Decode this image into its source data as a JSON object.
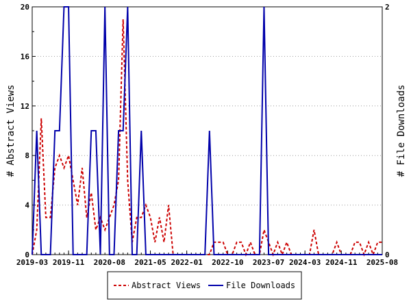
{
  "chart_data": {
    "type": "line",
    "title": "",
    "ylabel_left": "# Abstract Views",
    "ylabel_right": "# File Downloads",
    "ylim_left": [
      0,
      20
    ],
    "ylim_right": [
      0,
      2
    ],
    "yticks_left": [
      "0",
      "4",
      "8",
      "12",
      "16",
      "20"
    ],
    "yticks_right": [
      "0",
      "2"
    ],
    "x_start": "2019-03",
    "x_end": "2025-08",
    "xticks": [
      "2019-03",
      "2019-11",
      "2020-08",
      "2021-05",
      "2022-01",
      "2022-10",
      "2023-07",
      "2024-03",
      "2024-11",
      "2025-08"
    ],
    "legend_position": "bottom",
    "series": [
      {
        "name": "Abstract Views",
        "axis": "left",
        "color": "#cc0000",
        "style": "dashed",
        "points": [
          [
            "2019-03",
            0
          ],
          [
            "2019-04",
            2
          ],
          [
            "2019-05",
            11
          ],
          [
            "2019-06",
            3
          ],
          [
            "2019-07",
            3
          ],
          [
            "2019-08",
            7
          ],
          [
            "2019-09",
            8
          ],
          [
            "2019-10",
            7
          ],
          [
            "2019-11",
            8
          ],
          [
            "2019-12",
            6
          ],
          [
            "2020-01",
            4
          ],
          [
            "2020-02",
            7
          ],
          [
            "2020-03",
            3
          ],
          [
            "2020-04",
            5
          ],
          [
            "2020-05",
            2
          ],
          [
            "2020-06",
            3
          ],
          [
            "2020-07",
            2
          ],
          [
            "2020-08",
            3
          ],
          [
            "2020-09",
            4
          ],
          [
            "2020-10",
            6
          ],
          [
            "2020-11",
            19
          ],
          [
            "2020-12",
            6
          ],
          [
            "2021-01",
            1
          ],
          [
            "2021-02",
            3
          ],
          [
            "2021-03",
            3
          ],
          [
            "2021-04",
            4
          ],
          [
            "2021-05",
            3
          ],
          [
            "2021-06",
            1
          ],
          [
            "2021-07",
            3
          ],
          [
            "2021-08",
            1
          ],
          [
            "2021-09",
            4
          ],
          [
            "2021-10",
            0
          ],
          [
            "2021-11",
            0
          ],
          [
            "2021-12",
            0
          ],
          [
            "2022-01",
            0
          ],
          [
            "2022-02",
            0
          ],
          [
            "2022-03",
            0
          ],
          [
            "2022-04",
            0
          ],
          [
            "2022-05",
            0
          ],
          [
            "2022-06",
            0
          ],
          [
            "2022-07",
            1
          ],
          [
            "2022-08",
            1
          ],
          [
            "2022-09",
            1
          ],
          [
            "2022-10",
            0
          ],
          [
            "2022-11",
            0
          ],
          [
            "2022-12",
            1
          ],
          [
            "2023-01",
            1
          ],
          [
            "2023-02",
            0
          ],
          [
            "2023-03",
            1
          ],
          [
            "2023-04",
            0
          ],
          [
            "2023-05",
            0
          ],
          [
            "2023-06",
            2
          ],
          [
            "2023-07",
            1
          ],
          [
            "2023-08",
            0
          ],
          [
            "2023-09",
            1
          ],
          [
            "2023-10",
            0
          ],
          [
            "2023-11",
            1
          ],
          [
            "2023-12",
            0
          ],
          [
            "2024-01",
            0
          ],
          [
            "2024-02",
            0
          ],
          [
            "2024-03",
            0
          ],
          [
            "2024-04",
            0
          ],
          [
            "2024-05",
            2
          ],
          [
            "2024-06",
            0
          ],
          [
            "2024-07",
            0
          ],
          [
            "2024-08",
            0
          ],
          [
            "2024-09",
            0
          ],
          [
            "2024-10",
            1
          ],
          [
            "2024-11",
            0
          ],
          [
            "2024-12",
            0
          ],
          [
            "2025-01",
            0
          ],
          [
            "2025-02",
            1
          ],
          [
            "2025-03",
            1
          ],
          [
            "2025-04",
            0
          ],
          [
            "2025-05",
            1
          ],
          [
            "2025-06",
            0
          ],
          [
            "2025-07",
            1
          ],
          [
            "2025-08",
            1
          ]
        ]
      },
      {
        "name": "File Downloads",
        "axis": "right",
        "color": "#0000aa",
        "style": "solid",
        "points": [
          [
            "2019-03",
            0
          ],
          [
            "2019-04",
            1
          ],
          [
            "2019-05",
            0
          ],
          [
            "2019-06",
            0
          ],
          [
            "2019-07",
            0
          ],
          [
            "2019-08",
            1
          ],
          [
            "2019-09",
            1
          ],
          [
            "2019-10",
            2
          ],
          [
            "2019-11",
            2
          ],
          [
            "2019-12",
            0
          ],
          [
            "2020-01",
            0
          ],
          [
            "2020-02",
            0
          ],
          [
            "2020-03",
            0
          ],
          [
            "2020-04",
            1
          ],
          [
            "2020-05",
            1
          ],
          [
            "2020-06",
            0
          ],
          [
            "2020-07",
            2
          ],
          [
            "2020-08",
            0
          ],
          [
            "2020-09",
            0
          ],
          [
            "2020-10",
            1
          ],
          [
            "2020-11",
            1
          ],
          [
            "2020-12",
            2
          ],
          [
            "2021-01",
            0
          ],
          [
            "2021-02",
            0
          ],
          [
            "2021-03",
            1
          ],
          [
            "2021-04",
            0
          ],
          [
            "2021-05",
            0
          ],
          [
            "2021-06",
            0
          ],
          [
            "2021-07",
            0
          ],
          [
            "2021-08",
            0
          ],
          [
            "2021-09",
            0
          ],
          [
            "2021-10",
            0
          ],
          [
            "2021-11",
            0
          ],
          [
            "2021-12",
            0
          ],
          [
            "2022-01",
            0
          ],
          [
            "2022-02",
            0
          ],
          [
            "2022-03",
            0
          ],
          [
            "2022-04",
            0
          ],
          [
            "2022-05",
            0
          ],
          [
            "2022-06",
            1
          ],
          [
            "2022-07",
            0
          ],
          [
            "2022-08",
            0
          ],
          [
            "2022-09",
            0
          ],
          [
            "2022-10",
            0
          ],
          [
            "2022-11",
            0
          ],
          [
            "2022-12",
            0
          ],
          [
            "2023-01",
            0
          ],
          [
            "2023-02",
            0
          ],
          [
            "2023-03",
            0
          ],
          [
            "2023-04",
            0
          ],
          [
            "2023-05",
            0
          ],
          [
            "2023-06",
            2
          ],
          [
            "2023-07",
            0
          ],
          [
            "2023-08",
            0
          ],
          [
            "2023-09",
            0
          ],
          [
            "2023-10",
            0
          ],
          [
            "2023-11",
            0
          ],
          [
            "2023-12",
            0
          ],
          [
            "2024-01",
            0
          ],
          [
            "2024-02",
            0
          ],
          [
            "2024-03",
            0
          ],
          [
            "2024-04",
            0
          ],
          [
            "2024-05",
            0
          ],
          [
            "2024-06",
            0
          ],
          [
            "2024-07",
            0
          ],
          [
            "2024-08",
            0
          ],
          [
            "2024-09",
            0
          ],
          [
            "2024-10",
            0
          ],
          [
            "2024-11",
            0
          ],
          [
            "2024-12",
            0
          ],
          [
            "2025-01",
            0
          ],
          [
            "2025-02",
            0
          ],
          [
            "2025-03",
            0
          ],
          [
            "2025-04",
            0
          ],
          [
            "2025-05",
            0
          ],
          [
            "2025-06",
            0
          ],
          [
            "2025-07",
            0
          ],
          [
            "2025-08",
            0
          ]
        ]
      }
    ]
  }
}
